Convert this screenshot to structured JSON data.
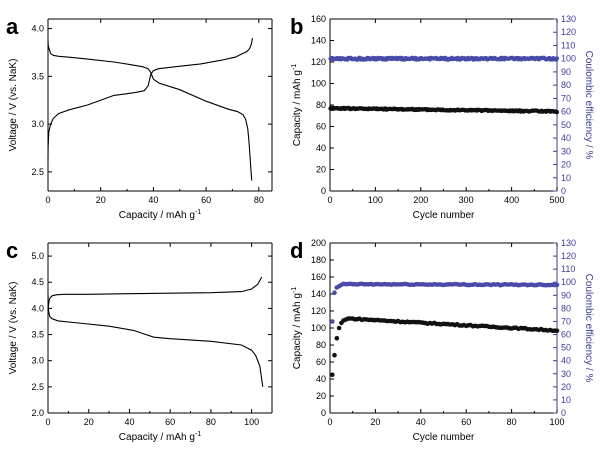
{
  "chart_data": [
    {
      "panel": "a",
      "type": "line",
      "xlabel": "Capacity / mAh g",
      "xlabel_sup": "-1",
      "ylabel": "Voltage / V (vs. NaK)",
      "xlim": [
        0,
        85
      ],
      "ylim": [
        2.3,
        4.1
      ],
      "xticks": [
        0,
        20,
        40,
        60,
        80
      ],
      "yticks": [
        2.5,
        3.0,
        3.5,
        4.0
      ],
      "ytick_labels": [
        "2.5",
        "3.0",
        "3.5",
        "4.0"
      ],
      "series": [
        {
          "x": [
            0,
            0.1,
            0.5,
            1,
            2,
            4,
            8,
            15,
            25,
            32,
            36,
            38,
            39,
            40,
            42,
            50,
            60,
            68,
            72,
            74,
            75,
            75.8,
            76.3,
            76.8,
            77.3
          ],
          "y": [
            3.87,
            3.82,
            3.78,
            3.74,
            3.72,
            3.71,
            3.7,
            3.68,
            3.65,
            3.62,
            3.6,
            3.58,
            3.54,
            3.47,
            3.43,
            3.36,
            3.24,
            3.16,
            3.13,
            3.1,
            3.05,
            2.95,
            2.8,
            2.6,
            2.41
          ]
        },
        {
          "x": [
            0,
            0.05,
            0.3,
            1,
            2,
            4,
            8,
            15,
            25,
            33,
            36.5,
            38,
            39,
            40,
            42,
            48,
            58,
            66,
            71,
            74,
            75.5,
            76.5,
            77.2,
            77.6
          ],
          "y": [
            2.62,
            2.75,
            2.92,
            3.0,
            3.06,
            3.11,
            3.15,
            3.2,
            3.3,
            3.33,
            3.35,
            3.4,
            3.52,
            3.56,
            3.58,
            3.6,
            3.63,
            3.67,
            3.7,
            3.74,
            3.76,
            3.79,
            3.84,
            3.9
          ]
        }
      ]
    },
    {
      "panel": "b",
      "type": "scatter",
      "xlabel": "Cycle number",
      "ylabel": "Capacity / mAh g",
      "ylabel_sup": "-1",
      "ylabel_right": "Coulombic efficiency / %",
      "xlim": [
        0,
        500
      ],
      "ylim": [
        0,
        160
      ],
      "ylim_right": [
        0,
        130
      ],
      "xticks": [
        0,
        100,
        200,
        300,
        400,
        500
      ],
      "yticks": [
        0,
        20,
        40,
        60,
        80,
        100,
        120,
        140,
        160
      ],
      "yticks_right": [
        0,
        10,
        20,
        30,
        40,
        50,
        60,
        70,
        80,
        90,
        100,
        110,
        120,
        130
      ],
      "series": [
        {
          "role": "capacity",
          "axis": "left",
          "x_start": 1,
          "x_end": 500,
          "y_start": 77,
          "y_end": 74,
          "noise": 0.6
        },
        {
          "role": "coulombic_efficiency",
          "axis": "right",
          "x_start": 1,
          "x_end": 500,
          "y_start": 100,
          "y_end": 100,
          "noise": 0.7
        }
      ]
    },
    {
      "panel": "c",
      "type": "line",
      "xlabel": "Capacity / mAh g",
      "xlabel_sup": "-1",
      "ylabel": "Voltage / V (vs. NaK)",
      "xlim": [
        0,
        110
      ],
      "ylim": [
        2.0,
        5.25
      ],
      "xticks": [
        0,
        20,
        40,
        60,
        80,
        100
      ],
      "yticks": [
        2.0,
        2.5,
        3.0,
        3.5,
        4.0,
        4.5,
        5.0
      ],
      "ytick_labels": [
        "2.0",
        "2.5",
        "3.0",
        "3.5",
        "4.0",
        "4.5",
        "5.0"
      ],
      "series": [
        {
          "x": [
            0,
            0.2,
            0.6,
            1,
            2,
            4,
            8,
            20,
            40,
            60,
            80,
            95,
            100,
            103,
            105
          ],
          "y": [
            3.95,
            4.05,
            4.15,
            4.2,
            4.24,
            4.26,
            4.27,
            4.27,
            4.28,
            4.29,
            4.3,
            4.32,
            4.37,
            4.46,
            4.6
          ]
        },
        {
          "x": [
            0,
            0.3,
            0.8,
            2,
            5,
            15,
            30,
            42,
            48,
            52,
            60,
            80,
            95,
            100,
            102,
            104,
            105.5
          ],
          "y": [
            4.25,
            3.95,
            3.85,
            3.8,
            3.76,
            3.72,
            3.66,
            3.58,
            3.5,
            3.45,
            3.42,
            3.37,
            3.3,
            3.2,
            3.1,
            2.9,
            2.5
          ]
        }
      ]
    },
    {
      "panel": "d",
      "type": "scatter",
      "xlabel": "Cycle number",
      "ylabel": "Capacity / mAh g",
      "ylabel_sup": "-1",
      "ylabel_right": "Coulombic efficiency / %",
      "xlim": [
        0,
        100
      ],
      "ylim": [
        0,
        200
      ],
      "ylim_right": [
        0,
        130
      ],
      "xticks": [
        0,
        20,
        40,
        60,
        80,
        100
      ],
      "yticks": [
        0,
        20,
        40,
        60,
        80,
        100,
        120,
        140,
        160,
        180,
        200
      ],
      "yticks_right": [
        0,
        10,
        20,
        30,
        40,
        50,
        60,
        70,
        80,
        90,
        100,
        110,
        120,
        130
      ],
      "series": [
        {
          "role": "capacity",
          "axis": "left",
          "points": [
            [
              1,
              45
            ],
            [
              2,
              68
            ],
            [
              3,
              88
            ],
            [
              4,
              100
            ],
            [
              5,
              106
            ],
            [
              6,
              109
            ],
            [
              7,
              110
            ],
            [
              8,
              111
            ]
          ],
          "x_start": 9,
          "x_end": 100,
          "y_start": 111,
          "y_end": 97,
          "noise": 0.7
        },
        {
          "role": "coulombic_efficiency",
          "axis": "right",
          "points": [
            [
              1,
              70
            ],
            [
              2,
              92
            ],
            [
              3,
              96
            ],
            [
              4,
              97
            ],
            [
              5,
              98
            ]
          ],
          "x_start": 6,
          "x_end": 100,
          "y_start": 98.5,
          "y_end": 98,
          "noise": 0.4
        }
      ]
    }
  ]
}
